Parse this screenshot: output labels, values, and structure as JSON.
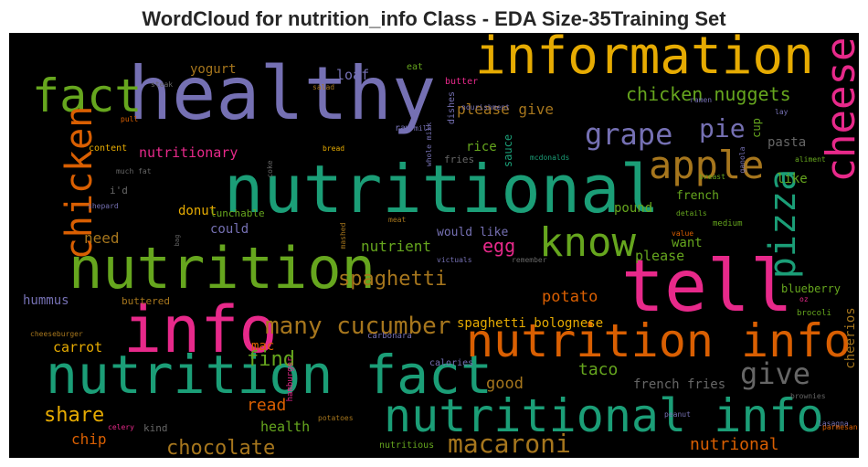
{
  "chart_data": {
    "type": "wordcloud",
    "title": "WordCloud for nutrition_info Class - EDA Size-35Training Set",
    "words": [
      {
        "text": "healthy",
        "color": "#7570b3"
      },
      {
        "text": "information",
        "color": "#e6ab02"
      },
      {
        "text": "fact",
        "color": "#66a61e"
      },
      {
        "text": "nutritional",
        "color": "#1b9e77"
      },
      {
        "text": "nutrition",
        "color": "#66a61e"
      },
      {
        "text": "tell",
        "color": "#e7298a"
      },
      {
        "text": "info",
        "color": "#e7298a"
      },
      {
        "text": "nutrition fact",
        "color": "#1b9e77"
      },
      {
        "text": "nutrition info",
        "color": "#d95f02"
      },
      {
        "text": "nutritional info",
        "color": "#1b9e77"
      },
      {
        "text": "cheese",
        "color": "#e7298a"
      },
      {
        "text": "chicken",
        "color": "#d95f02"
      },
      {
        "text": "pizza",
        "color": "#1b9e77"
      },
      {
        "text": "know",
        "color": "#66a61e"
      },
      {
        "text": "apple",
        "color": "#a6761d"
      },
      {
        "text": "grape",
        "color": "#7570b3"
      },
      {
        "text": "pie",
        "color": "#7570b3"
      },
      {
        "text": "chicken nuggets",
        "color": "#66a61e"
      },
      {
        "text": "please give",
        "color": "#a6761d"
      },
      {
        "text": "many cucumber",
        "color": "#a6761d"
      },
      {
        "text": "find",
        "color": "#66a61e"
      },
      {
        "text": "spaghetti",
        "color": "#a6761d"
      },
      {
        "text": "egg",
        "color": "#e7298a"
      },
      {
        "text": "nutrient",
        "color": "#66a61e"
      },
      {
        "text": "need",
        "color": "#a6761d"
      },
      {
        "text": "potato",
        "color": "#d95f02"
      },
      {
        "text": "spaghetti bolognese",
        "color": "#e6ab02"
      },
      {
        "text": "give",
        "color": "#666666"
      },
      {
        "text": "good",
        "color": "#a6761d"
      },
      {
        "text": "taco",
        "color": "#66a61e"
      },
      {
        "text": "french fries",
        "color": "#666666"
      },
      {
        "text": "macaroni",
        "color": "#a6761d"
      },
      {
        "text": "chocolate",
        "color": "#a6761d"
      },
      {
        "text": "share",
        "color": "#e6ab02"
      },
      {
        "text": "read",
        "color": "#d95f02"
      },
      {
        "text": "health",
        "color": "#66a61e"
      },
      {
        "text": "chip",
        "color": "#d95f02"
      },
      {
        "text": "kind",
        "color": "#666666"
      },
      {
        "text": "nutrional",
        "color": "#d95f02"
      },
      {
        "text": "cheerios",
        "color": "#a6761d"
      },
      {
        "text": "blueberry",
        "color": "#66a61e"
      },
      {
        "text": "brocoli",
        "color": "#66a61e"
      },
      {
        "text": "oz",
        "color": "#e7298a"
      },
      {
        "text": "like",
        "color": "#66a61e"
      },
      {
        "text": "pasta",
        "color": "#666666"
      },
      {
        "text": "french",
        "color": "#66a61e"
      },
      {
        "text": "pound",
        "color": "#66a61e"
      },
      {
        "text": "want",
        "color": "#66a61e"
      },
      {
        "text": "please",
        "color": "#66a61e"
      },
      {
        "text": "medium",
        "color": "#66a61e"
      },
      {
        "text": "details",
        "color": "#66a61e"
      },
      {
        "text": "value",
        "color": "#d95f02"
      },
      {
        "text": "cup",
        "color": "#66a61e"
      },
      {
        "text": "aliment",
        "color": "#66a61e"
      },
      {
        "text": "ganola",
        "color": "#7570b3"
      },
      {
        "text": "breast",
        "color": "#66a61e"
      },
      {
        "text": "ramen",
        "color": "#7570b3"
      },
      {
        "text": "lay",
        "color": "#7570b3"
      },
      {
        "text": "nourishment",
        "color": "#7570b3"
      },
      {
        "text": "rice",
        "color": "#66a61e"
      },
      {
        "text": "sauce",
        "color": "#1b9e77"
      },
      {
        "text": "fries",
        "color": "#666666"
      },
      {
        "text": "mcdonalds",
        "color": "#1b9e77"
      },
      {
        "text": "whole milk",
        "color": "#7570b3"
      },
      {
        "text": "dishes",
        "color": "#7570b3"
      },
      {
        "text": "milk",
        "color": "#7570b3"
      },
      {
        "text": "butter",
        "color": "#e7298a"
      },
      {
        "text": "eat",
        "color": "#66a61e"
      },
      {
        "text": "loaf",
        "color": "#7570b3"
      },
      {
        "text": "yogurt",
        "color": "#a6761d"
      },
      {
        "text": "steak",
        "color": "#666666"
      },
      {
        "text": "salad",
        "color": "#a6761d"
      },
      {
        "text": "pull",
        "color": "#d95f02"
      },
      {
        "text": "raw",
        "color": "#7570b3"
      },
      {
        "text": "nutritionary",
        "color": "#e7298a"
      },
      {
        "text": "content",
        "color": "#e6ab02"
      },
      {
        "text": "bread",
        "color": "#e6ab02"
      },
      {
        "text": "coke",
        "color": "#666666"
      },
      {
        "text": "much fat",
        "color": "#666666"
      },
      {
        "text": "i'd",
        "color": "#666666"
      },
      {
        "text": "shepard",
        "color": "#7570b3"
      },
      {
        "text": "donut",
        "color": "#e6ab02"
      },
      {
        "text": "lunchable",
        "color": "#66a61e"
      },
      {
        "text": "could",
        "color": "#7570b3"
      },
      {
        "text": "bag",
        "color": "#666666"
      },
      {
        "text": "mashed",
        "color": "#a6761d"
      },
      {
        "text": "meat",
        "color": "#a6761d"
      },
      {
        "text": "would like",
        "color": "#7570b3"
      },
      {
        "text": "victuals",
        "color": "#7570b3"
      },
      {
        "text": "remember",
        "color": "#666666"
      },
      {
        "text": "hummus",
        "color": "#7570b3"
      },
      {
        "text": "buttered",
        "color": "#a6761d"
      },
      {
        "text": "cheeseburger",
        "color": "#a6761d"
      },
      {
        "text": "carbonara",
        "color": "#7570b3"
      },
      {
        "text": "carrot",
        "color": "#e6ab02"
      },
      {
        "text": "mac",
        "color": "#d95f02"
      },
      {
        "text": "hamburger",
        "color": "#e7298a"
      },
      {
        "text": "calories",
        "color": "#7570b3"
      },
      {
        "text": "peanut",
        "color": "#7570b3"
      },
      {
        "text": "brownies",
        "color": "#666666"
      },
      {
        "text": "lasagna",
        "color": "#7570b3"
      },
      {
        "text": "parmesan",
        "color": "#d95f02"
      },
      {
        "text": "celery",
        "color": "#e7298a"
      },
      {
        "text": "potatoes",
        "color": "#a6761d"
      },
      {
        "text": "nutritious",
        "color": "#66a61e"
      }
    ]
  }
}
